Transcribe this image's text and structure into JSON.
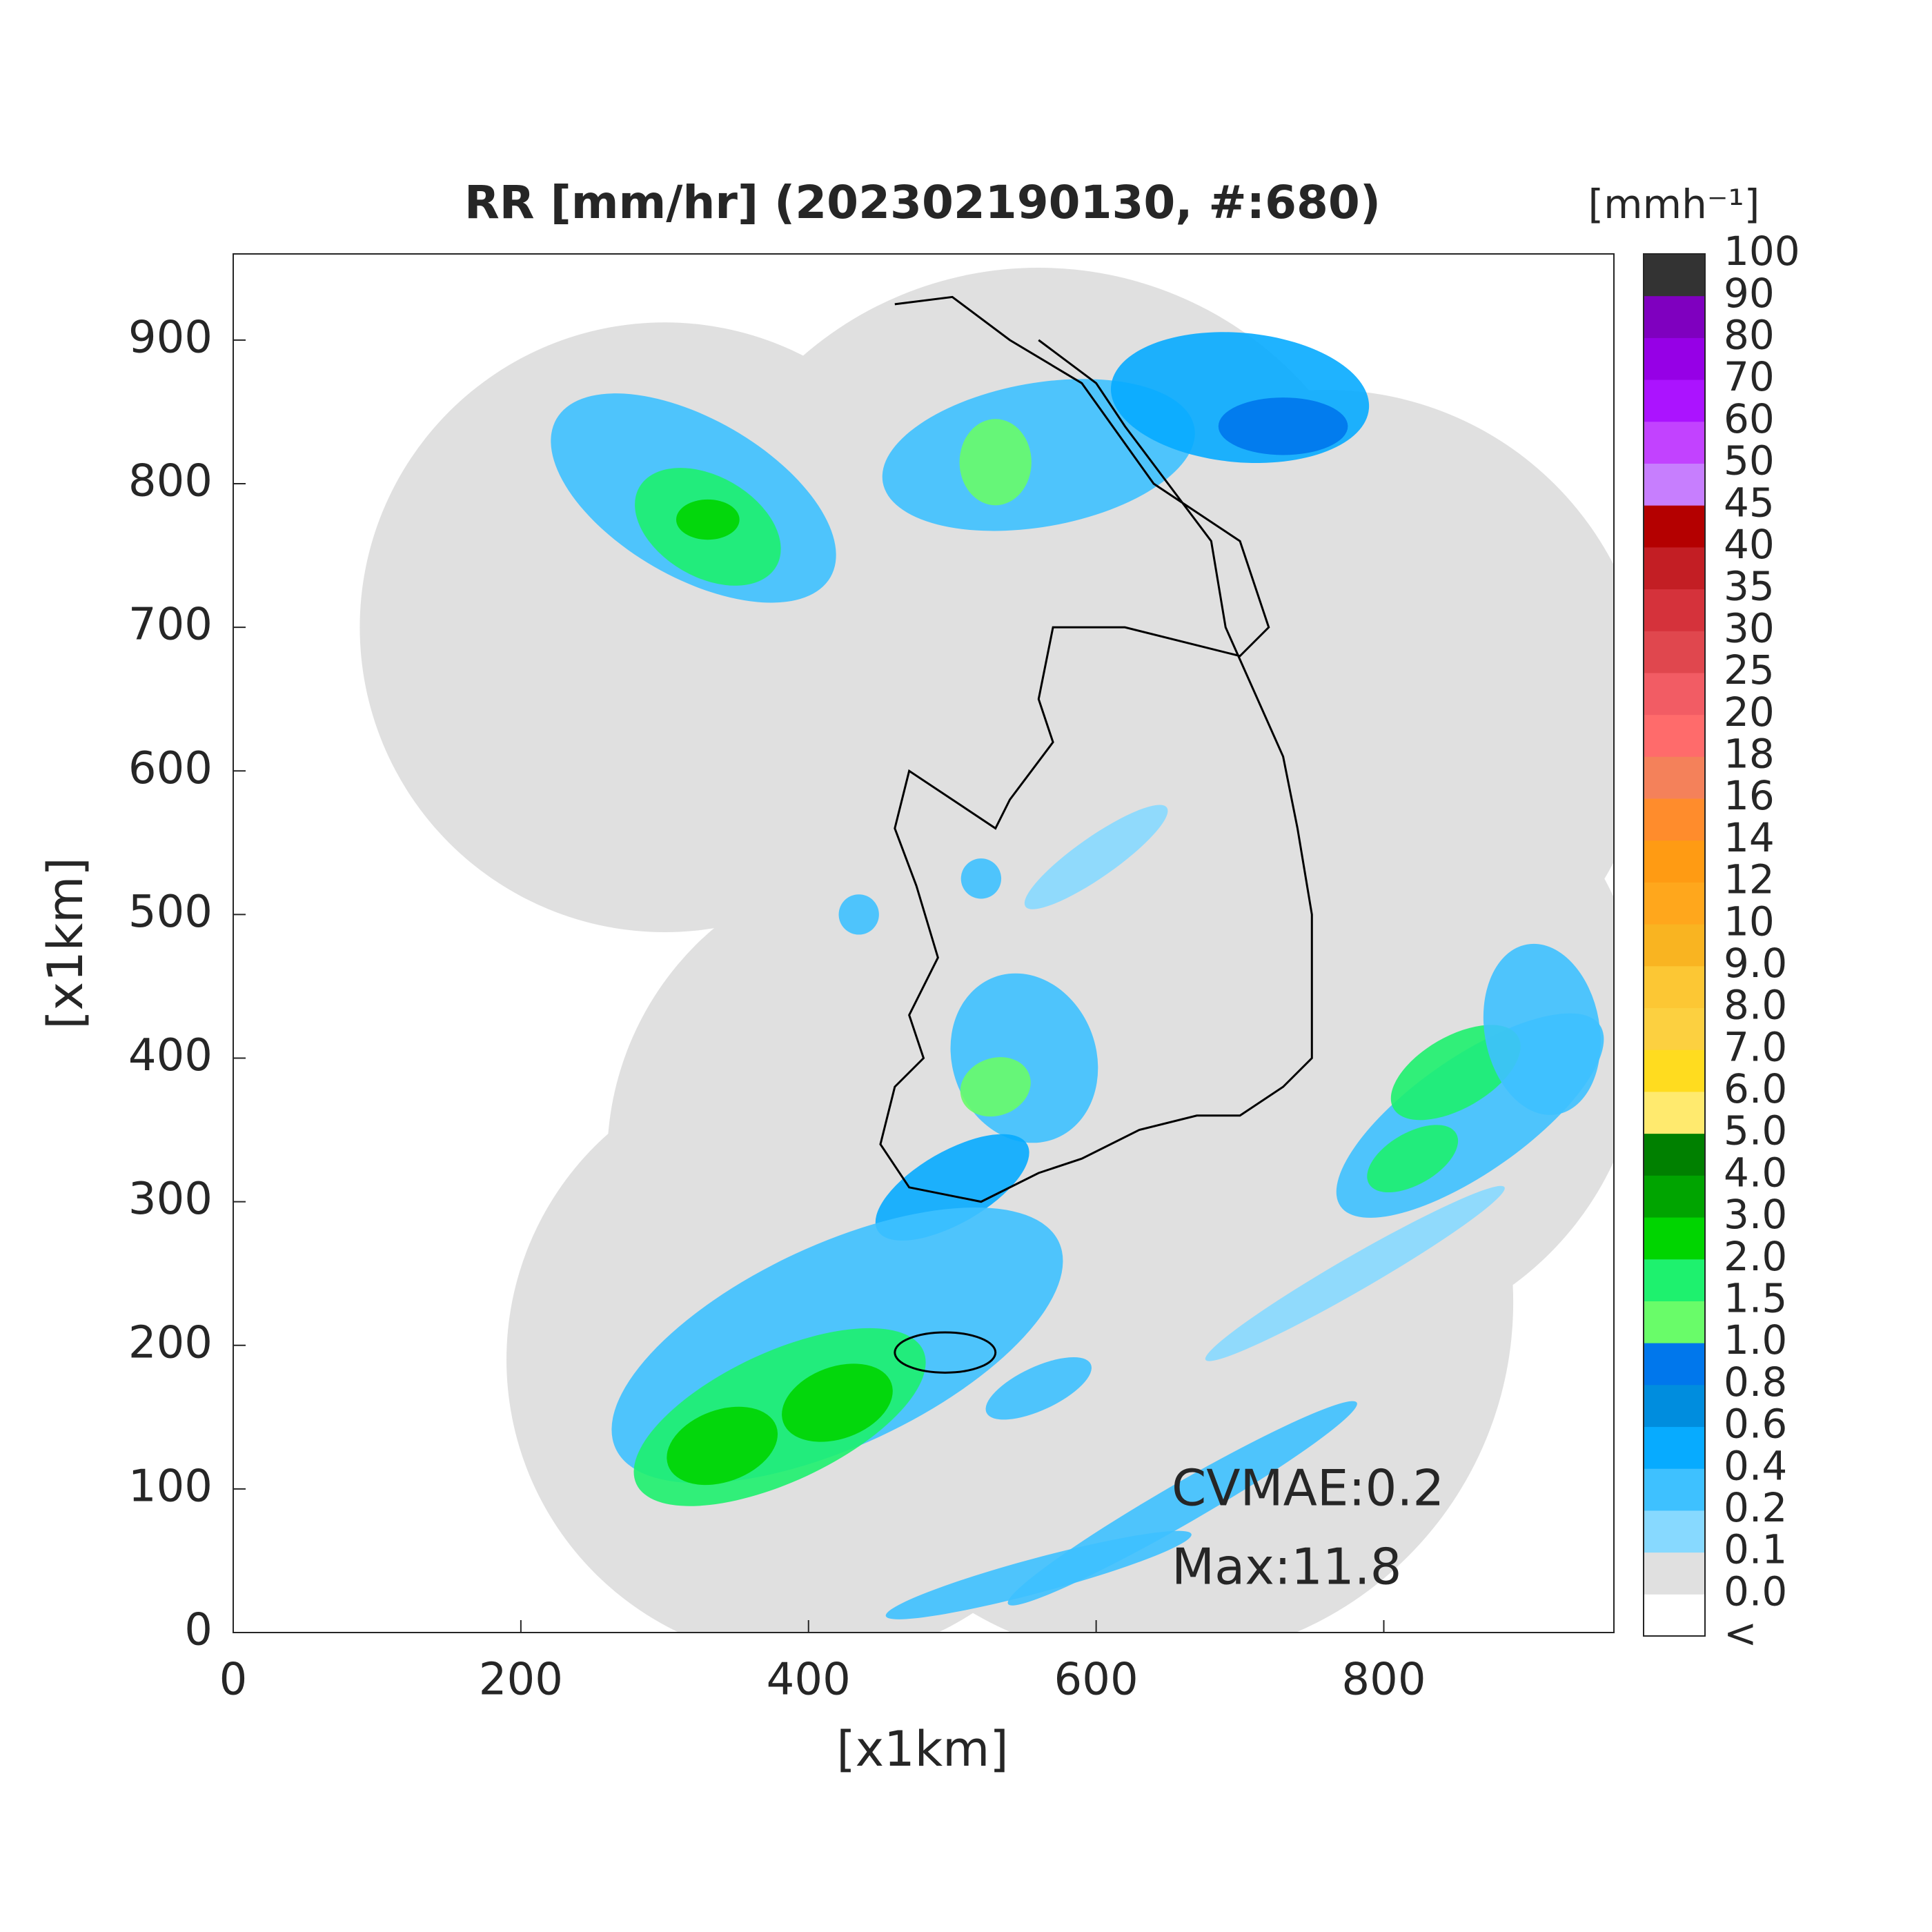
{
  "chart_data": {
    "type": "radar-map",
    "title": "RR [mm/hr] (202302190130, #:680)",
    "x_label": "[x1km]",
    "y_label": "[x1km]",
    "xlim": [
      0,
      960
    ],
    "ylim": [
      0,
      960
    ],
    "xticks": [
      0,
      200,
      400,
      600,
      800
    ],
    "yticks": [
      0,
      100,
      200,
      300,
      400,
      500,
      600,
      700,
      800,
      900
    ],
    "annotations": [
      "CVMAE:0.2",
      "Max:11.8"
    ],
    "colorbar": {
      "title": "[mmh⁻¹]",
      "levels": [
        "<",
        "0.0",
        "0.1",
        "0.2",
        "0.4",
        "0.6",
        "0.8",
        "1.0",
        "1.5",
        "2.0",
        "3.0",
        "4.0",
        "5.0",
        "6.0",
        "7.0",
        "8.0",
        "9.0",
        "10",
        "12",
        "14",
        "16",
        "18",
        "20",
        "25",
        "30",
        "35",
        "40",
        "45",
        "50",
        "60",
        "70",
        "80",
        "90",
        "100"
      ],
      "colors": [
        "#ffffff",
        "#e0e0e0",
        "#87d9ff",
        "#3ec1ff",
        "#07abff",
        "#008dde",
        "#0077ec",
        "#69fc69",
        "#1ef16e",
        "#00d500",
        "#00a400",
        "#008000",
        "#ffea6e",
        "#ffdc1f",
        "#fcd040",
        "#fcc734",
        "#f9b421",
        "#ffa71c",
        "#ff9b13",
        "#ff8c2c",
        "#f4815a",
        "#ff6b6b",
        "#f25c64",
        "#e0474e",
        "#d5323b",
        "#c31e24",
        "#b40000",
        "#c77efe",
        "#c242ff",
        "#ab13ff",
        "#9600e6",
        "#7f00bf",
        "#333333"
      ]
    }
  }
}
